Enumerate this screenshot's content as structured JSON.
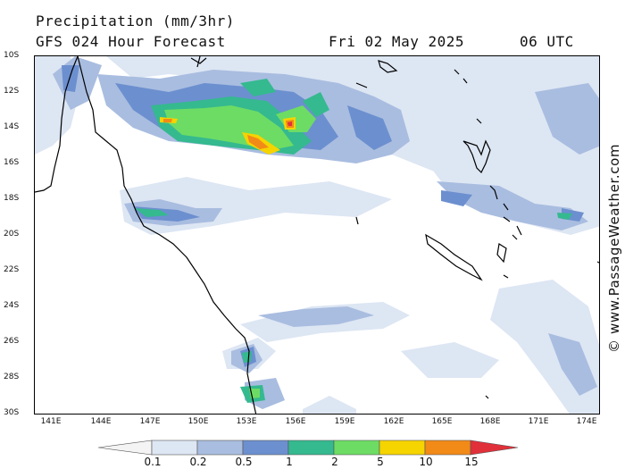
{
  "header": {
    "title": "Precipitation (mm/3hr)",
    "subtitle": "GFS 024 Hour Forecast",
    "date": "Fri 02 May 2025",
    "time": "06 UTC"
  },
  "credit": "© www.PassageWeather.com",
  "map": {
    "lat_labels": [
      "10S",
      "12S",
      "14S",
      "16S",
      "18S",
      "20S",
      "22S",
      "24S",
      "26S",
      "28S",
      "30S"
    ],
    "lon_labels": [
      "141E",
      "144E",
      "147E",
      "150E",
      "153E",
      "156E",
      "159E",
      "162E",
      "165E",
      "168E",
      "171E",
      "174E"
    ]
  },
  "legend": {
    "labels": [
      "0.1",
      "0.2",
      "0.5",
      "1",
      "2",
      "5",
      "10",
      "15"
    ],
    "colors": [
      "#f4f4f4",
      "#dde6f3",
      "#a9bde0",
      "#6c8fcf",
      "#35b98f",
      "#6ddc64",
      "#f5d400",
      "#f28a18",
      "#e0303a"
    ]
  },
  "colors": {
    "light": "#dde6f3",
    "mid": "#a9bde0",
    "blue": "#6c8fcf",
    "teal": "#35b98f",
    "green": "#6ddc64",
    "yellow": "#f5d400",
    "orange": "#f28a18",
    "red": "#e0303a"
  }
}
